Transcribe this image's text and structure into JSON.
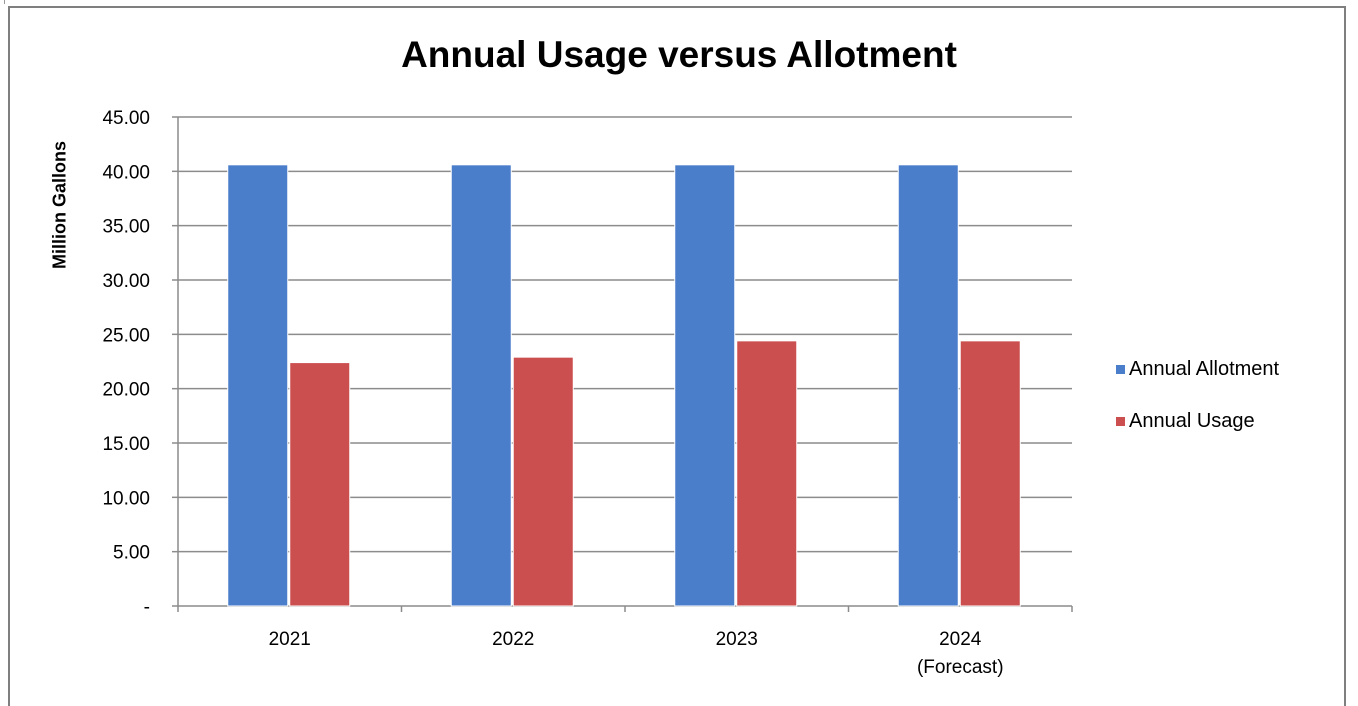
{
  "chart_data": {
    "type": "bar",
    "title": "Annual Usage versus Allotment",
    "ylabel": "Million Gallons",
    "xlabel": "",
    "categories": [
      [
        "2021"
      ],
      [
        "2022"
      ],
      [
        "2023"
      ],
      [
        "2024",
        "(Forecast)"
      ]
    ],
    "series": [
      {
        "name": "Annual Allotment",
        "color": "#4a7ecb",
        "values": [
          40.6,
          40.6,
          40.6,
          40.6
        ]
      },
      {
        "name": "Annual Usage",
        "color": "#cc4f4f",
        "values": [
          22.4,
          22.9,
          24.4,
          24.4
        ]
      }
    ],
    "ylim": [
      0,
      45
    ],
    "yticks": [
      {
        "value": 0,
        "label": "-"
      },
      {
        "value": 5,
        "label": "5.00"
      },
      {
        "value": 10,
        "label": "10.00"
      },
      {
        "value": 15,
        "label": "15.00"
      },
      {
        "value": 20,
        "label": "20.00"
      },
      {
        "value": 25,
        "label": "25.00"
      },
      {
        "value": 30,
        "label": "30.00"
      },
      {
        "value": 35,
        "label": "35.00"
      },
      {
        "value": 40,
        "label": "40.00"
      },
      {
        "value": 45,
        "label": "45.00"
      }
    ],
    "grid": true,
    "legend_position": "right"
  }
}
